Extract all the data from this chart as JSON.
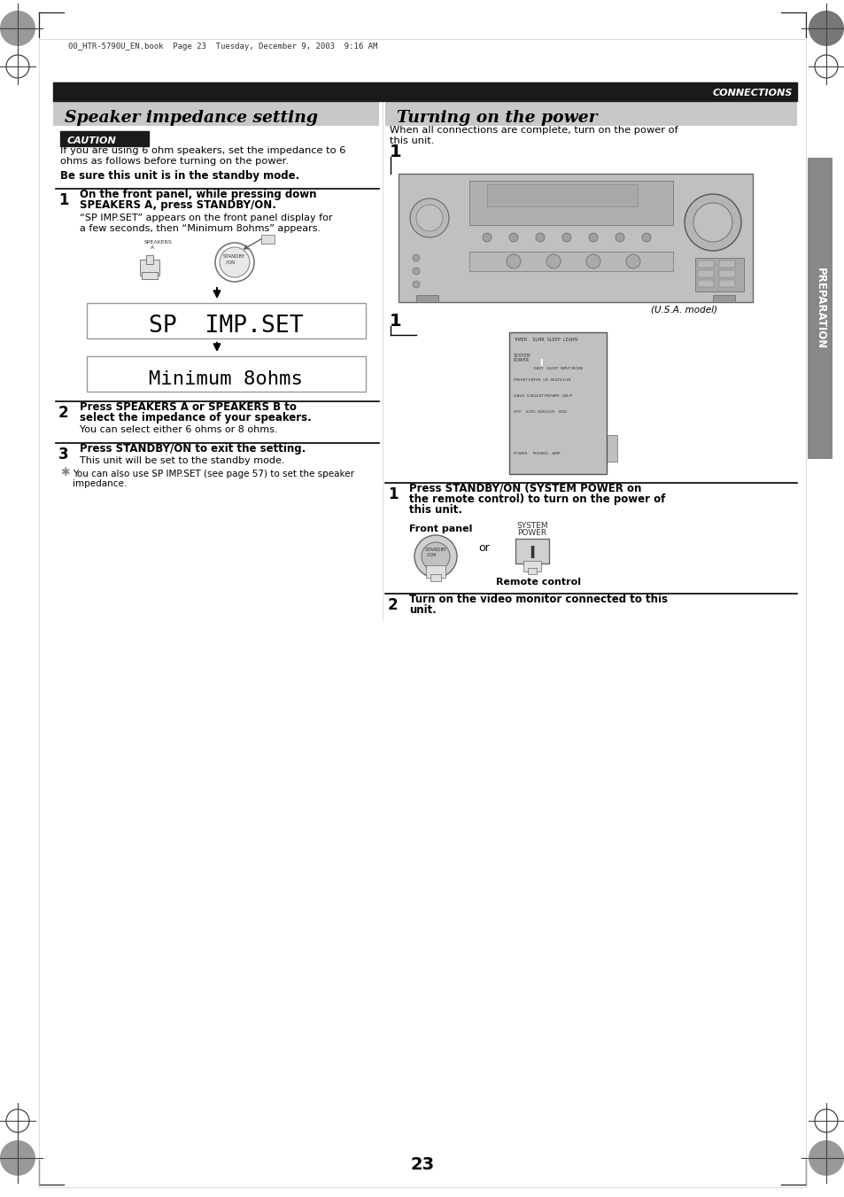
{
  "page_bg": "#ffffff",
  "header_bar_color": "#1a1a1a",
  "header_text": "CONNECTIONS",
  "header_text_color": "#ffffff",
  "section1_title": "Speaker impedance setting",
  "section2_title": "Turning on the power",
  "section1_bg": "#c8c8c8",
  "section2_bg": "#c8c8c8",
  "caution_bg": "#1a1a1a",
  "caution_text": "CAUTION",
  "caution_text_color": "#ffffff",
  "file_info": "00_HTR-5790U_EN.book  Page 23  Tuesday, December 9, 2003  9:16 AM",
  "page_number": "23",
  "preparation_label": "PREPARATION",
  "prep_bar_color": "#888888",
  "divider_color": "#000000",
  "text_color": "#000000"
}
